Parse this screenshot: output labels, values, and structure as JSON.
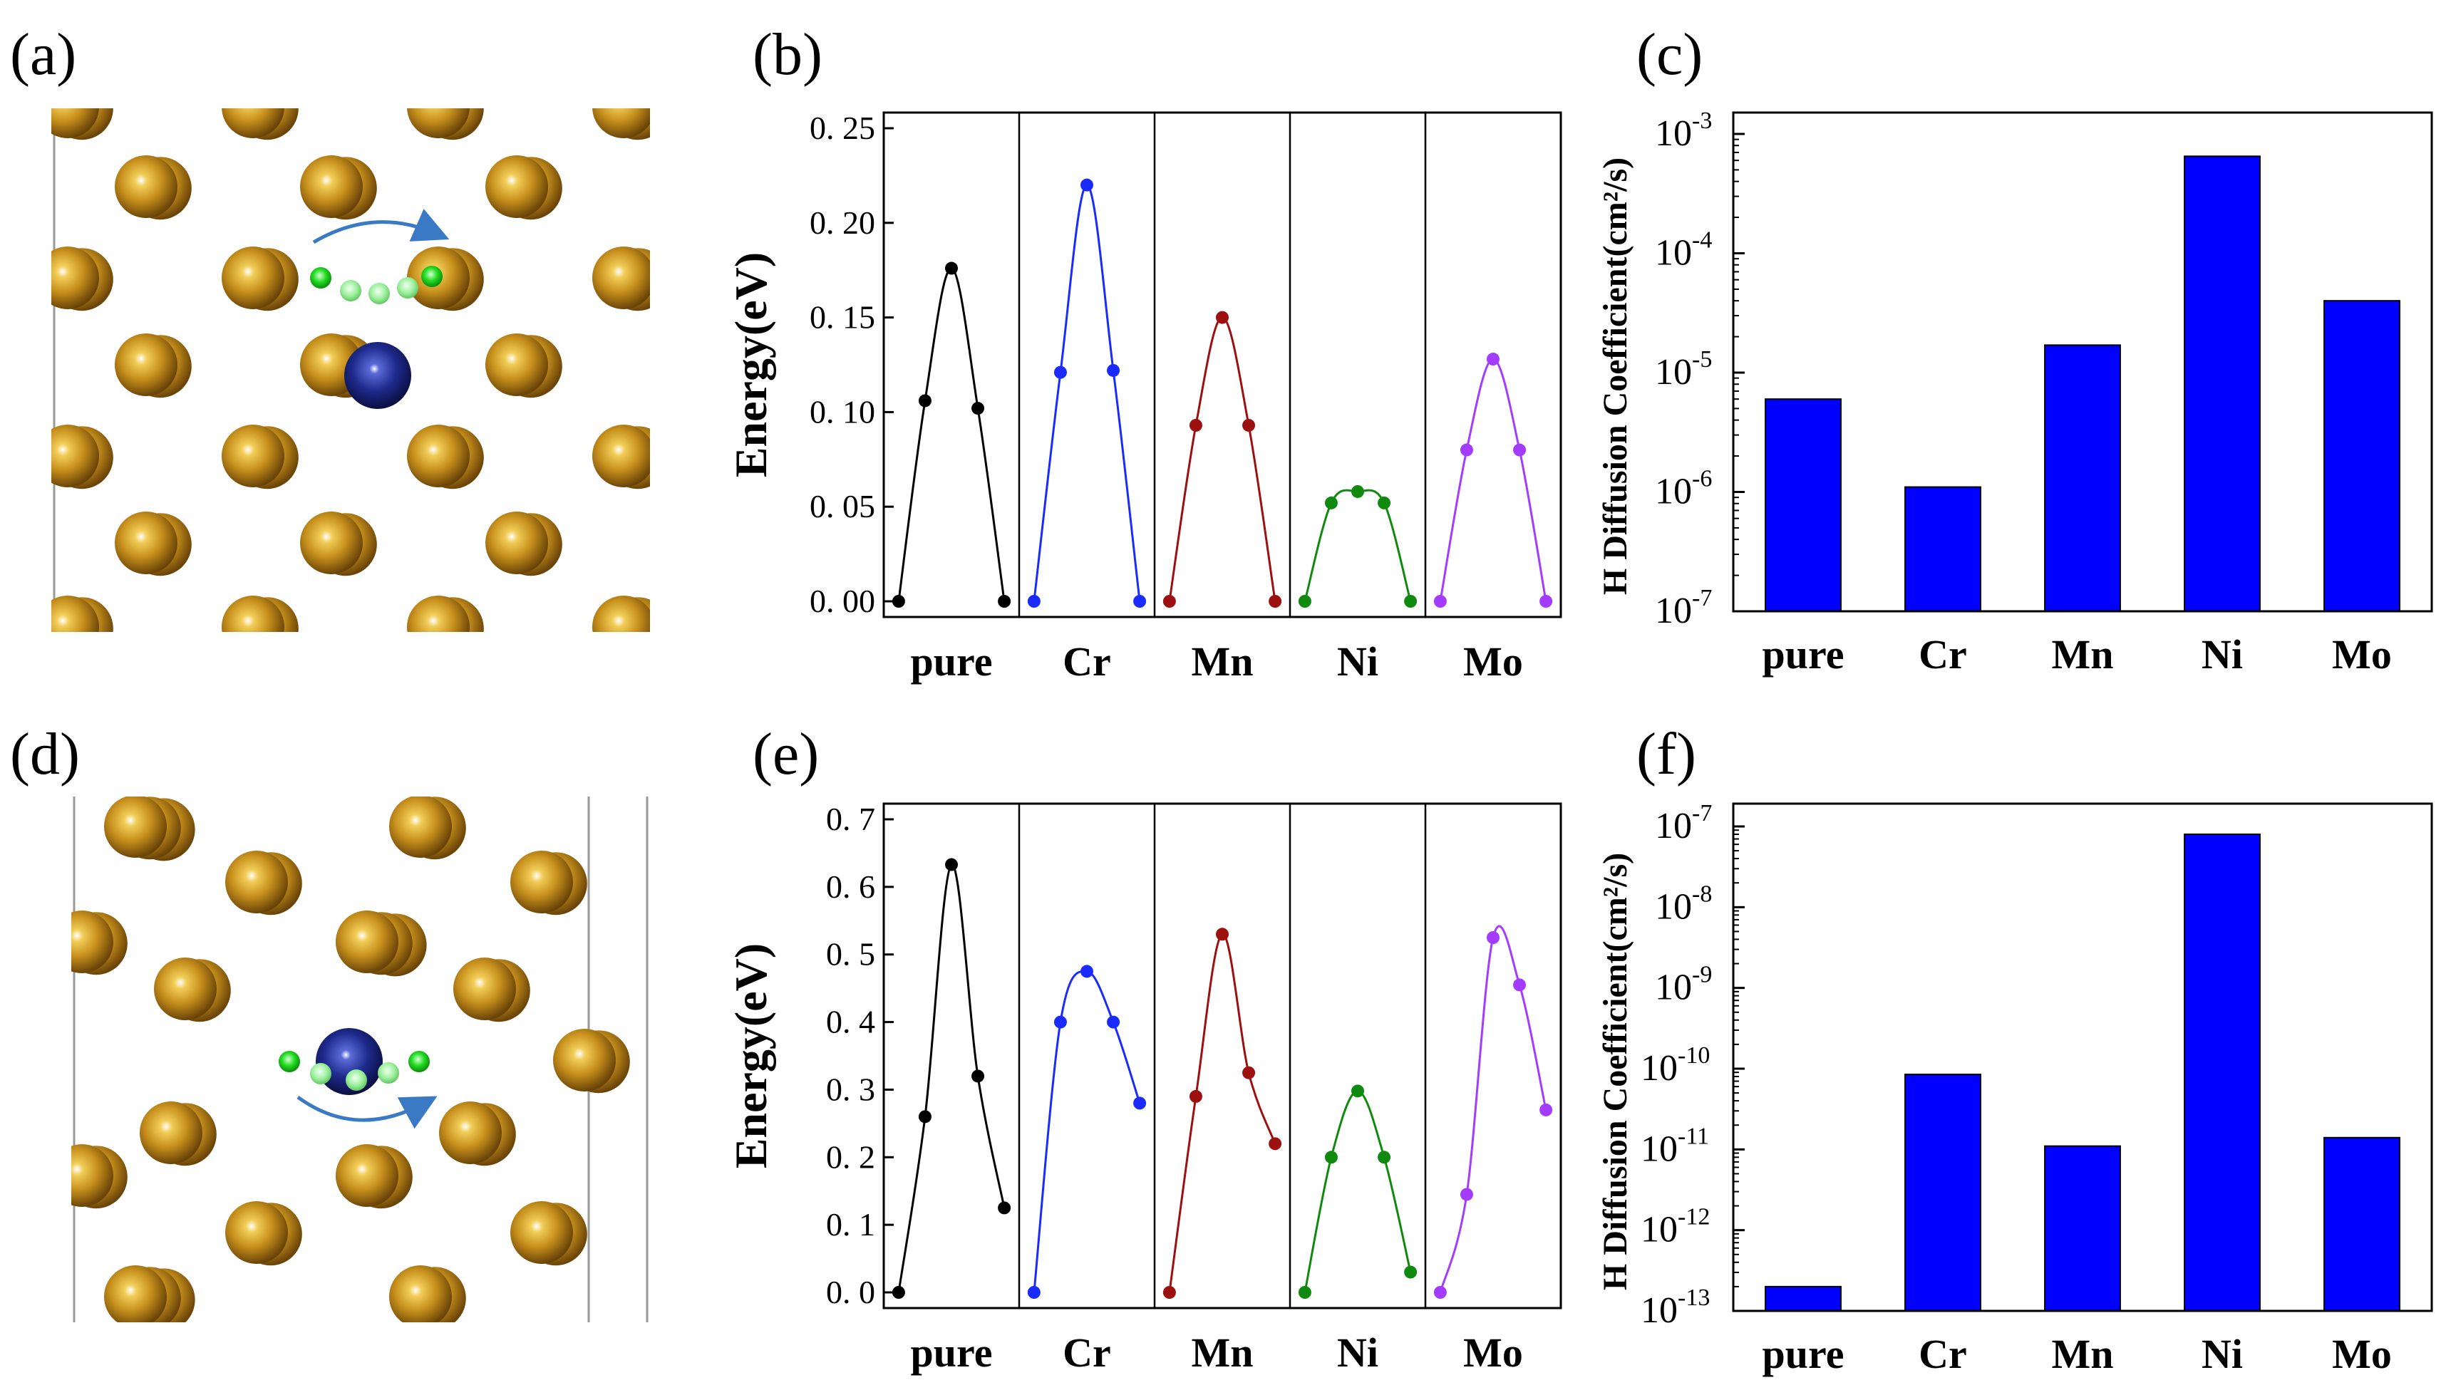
{
  "panels": {
    "a": "(a)",
    "b": "(b)",
    "c": "(c)",
    "d": "(d)",
    "e": "(e)",
    "f": "(f)"
  },
  "colors": {
    "pure": "#000000",
    "Cr": "#1a2bff",
    "Mn": "#9c1010",
    "Ni": "#0f8a0f",
    "Mo": "#a33cff",
    "bar": "#0000ff",
    "fe_atom": "#c7901c",
    "solute_atom": "#1e2a8c",
    "h_atom": "#22dd22",
    "arrow": "#3a7ac4"
  },
  "icons": {
    "a": [
      "fe-atom",
      "solute-atom",
      "h-atom",
      "diffusion-arrow"
    ],
    "d": [
      "fe-atom",
      "solute-atom",
      "h-atom",
      "diffusion-arrow"
    ]
  },
  "chart_data": [
    {
      "id": "b",
      "type": "line",
      "ylabel": "Energy(eV)",
      "ylim": [
        0,
        0.25
      ],
      "yticks": [
        "0. 00",
        "0. 05",
        "0. 10",
        "0. 15",
        "0. 20",
        "0. 25"
      ],
      "categories": [
        "pure",
        "Cr",
        "Mn",
        "Ni",
        "Mo"
      ],
      "series": [
        {
          "name": "pure",
          "y": [
            0.0,
            0.106,
            0.176,
            0.102,
            0.0
          ]
        },
        {
          "name": "Cr",
          "y": [
            0.0,
            0.121,
            0.22,
            0.122,
            0.0
          ]
        },
        {
          "name": "Mn",
          "y": [
            0.0,
            0.093,
            0.15,
            0.093,
            0.0
          ]
        },
        {
          "name": "Ni",
          "y": [
            0.0,
            0.052,
            0.058,
            0.052,
            0.0
          ]
        },
        {
          "name": "Mo",
          "y": [
            0.0,
            0.08,
            0.128,
            0.08,
            0.0
          ]
        }
      ]
    },
    {
      "id": "c",
      "type": "bar",
      "ylabel": "H Diffusion Coefficient(cm²/s)",
      "yscale": "log",
      "ylim_exp": [
        -7,
        -3
      ],
      "ytick_exps": [
        "-7",
        "-6",
        "-5",
        "-4",
        "-3"
      ],
      "categories": [
        "pure",
        "Cr",
        "Mn",
        "Ni",
        "Mo"
      ],
      "values": [
        6e-06,
        1.1e-06,
        1.7e-05,
        0.00065,
        4e-05
      ]
    },
    {
      "id": "e",
      "type": "line",
      "ylabel": "Energy(eV)",
      "ylim": [
        0,
        0.7
      ],
      "yticks": [
        "0. 0",
        "0. 1",
        "0. 2",
        "0. 3",
        "0. 4",
        "0. 5",
        "0. 6",
        "0. 7"
      ],
      "categories": [
        "pure",
        "Cr",
        "Mn",
        "Ni",
        "Mo"
      ],
      "series": [
        {
          "name": "pure",
          "y": [
            0.0,
            0.26,
            0.633,
            0.32,
            0.125
          ]
        },
        {
          "name": "Cr",
          "y": [
            0.0,
            0.4,
            0.475,
            0.4,
            0.28
          ]
        },
        {
          "name": "Mn",
          "y": [
            0.0,
            0.29,
            0.53,
            0.325,
            0.22
          ]
        },
        {
          "name": "Ni",
          "y": [
            0.0,
            0.2,
            0.298,
            0.2,
            0.03
          ]
        },
        {
          "name": "Mo",
          "y": [
            0.0,
            0.145,
            0.525,
            0.455,
            0.27
          ]
        }
      ]
    },
    {
      "id": "f",
      "type": "bar",
      "ylabel": "H Diffusion Coefficient(cm²/s)",
      "yscale": "log",
      "ylim_exp": [
        -13,
        -7
      ],
      "ytick_exps": [
        "-13",
        "-12",
        "-11",
        "-10",
        "-9",
        "-8",
        "-7"
      ],
      "categories": [
        "pure",
        "Cr",
        "Mn",
        "Ni",
        "Mo"
      ],
      "values": [
        2e-13,
        8.5e-11,
        1.1e-11,
        8e-08,
        1.4e-11
      ]
    }
  ]
}
